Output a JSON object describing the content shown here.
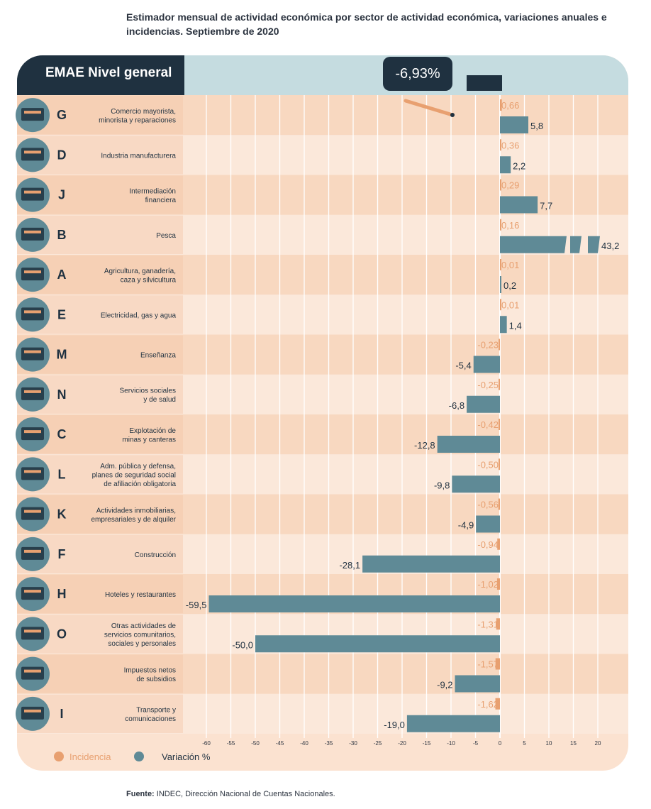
{
  "title": "Estimador mensual de actividad económica por sector de actividad económica, variaciones anuales e incidencias. Septiembre de 2020",
  "header": {
    "label": "EMAE Nivel general",
    "value": "-6,93%"
  },
  "footer": {
    "label": "Fuente:",
    "text": "INDEC, Dirección Nacional de Cuentas Nacionales."
  },
  "colors": {
    "bar": "#5f8a96",
    "incidence": "#e8a070",
    "dark": "#1f3140",
    "band_dark": "#f8d8c0",
    "band_light": "#fbe8da"
  },
  "chart_data": {
    "type": "bar",
    "orientation": "horizontal",
    "xlim": [
      -60,
      20
    ],
    "x_ticks": [
      -60,
      -55,
      -50,
      -45,
      -40,
      -35,
      -30,
      -25,
      -20,
      -15,
      -10,
      -5,
      0,
      5,
      10,
      15,
      20
    ],
    "rows": [
      {
        "code": "G",
        "label": [
          "Comercio mayorista,",
          "minorista y reparaciones"
        ],
        "icon": "store-icon",
        "incidencia": "0,66",
        "variacion": 5.8,
        "variacion_label": "5,8"
      },
      {
        "code": "D",
        "label": [
          "Industria manufacturera"
        ],
        "icon": "gears-icon",
        "incidencia": "0,36",
        "variacion": 2.2,
        "variacion_label": "2,2"
      },
      {
        "code": "J",
        "label": [
          "Intermediación",
          "financiera"
        ],
        "icon": "bank-icon",
        "incidencia": "0,29",
        "variacion": 7.7,
        "variacion_label": "7,7"
      },
      {
        "code": "B",
        "label": [
          "Pesca"
        ],
        "icon": "fish-icon",
        "incidencia": "0,16",
        "variacion": 43.2,
        "variacion_label": "43,2",
        "broken": true
      },
      {
        "code": "A",
        "label": [
          "Agricultura, ganadería,",
          "caza y silvicultura"
        ],
        "icon": "silo-icon",
        "incidencia": "0,01",
        "variacion": 0.2,
        "variacion_label": "0,2"
      },
      {
        "code": "E",
        "label": [
          "Electricidad, gas y agua"
        ],
        "icon": "tower-icon",
        "incidencia": "0,01",
        "variacion": 1.4,
        "variacion_label": "1,4"
      },
      {
        "code": "M",
        "label": [
          "Enseñanza"
        ],
        "icon": "desk-icon",
        "incidencia": "-0,23",
        "variacion": -5.4,
        "variacion_label": "-5,4"
      },
      {
        "code": "N",
        "label": [
          "Servicios sociales",
          "y de salud"
        ],
        "icon": "medkit-icon",
        "incidencia": "-0,25",
        "variacion": -6.8,
        "variacion_label": "-6,8"
      },
      {
        "code": "C",
        "label": [
          "Explotación de",
          "minas y canteras"
        ],
        "icon": "pumpjack-icon",
        "incidencia": "-0,42",
        "variacion": -12.8,
        "variacion_label": "-12,8"
      },
      {
        "code": "L",
        "label": [
          "Adm. pública y defensa,",
          "planes de seguridad social",
          "de afiliación obligatoria"
        ],
        "icon": "capitol-icon",
        "incidencia": "-0,50",
        "variacion": -9.8,
        "variacion_label": "-9,8"
      },
      {
        "code": "K",
        "label": [
          "Actividades inmobiliarias,",
          "empresariales y de alquiler"
        ],
        "icon": "megaphone-icon",
        "incidencia": "-0,56",
        "variacion": -4.9,
        "variacion_label": "-4,9"
      },
      {
        "code": "F",
        "label": [
          "Construcción"
        ],
        "icon": "truck-icon",
        "incidencia": "-0,94",
        "variacion": -28.1,
        "variacion_label": "-28,1"
      },
      {
        "code": "H",
        "label": [
          "Hoteles y restaurantes"
        ],
        "icon": "hotel-icon",
        "incidencia": "-1,02",
        "variacion": -59.5,
        "variacion_label": "-59,5"
      },
      {
        "code": "O",
        "label": [
          "Otras actividades de",
          "servicios comunitarios,",
          "sociales y personales"
        ],
        "icon": "theater-icon",
        "incidencia": "-1,31",
        "variacion": -50.0,
        "variacion_label": "-50,0"
      },
      {
        "code": "I2",
        "display_code": "",
        "label": [
          "Impuestos netos",
          "de subsidios"
        ],
        "icon": "coins-icon",
        "incidencia": "-1,57",
        "variacion": -9.2,
        "variacion_label": "-9,2"
      },
      {
        "code": "I",
        "label": [
          "Transporte y",
          "comunicaciones"
        ],
        "icon": "antenna-icon",
        "incidencia": "-1,62",
        "variacion": -19.0,
        "variacion_label": "-19,0"
      }
    ],
    "legend": [
      {
        "name": "Incidencia",
        "color": "#e8a070"
      },
      {
        "name": "Variación %",
        "color": "#5f8a96"
      }
    ]
  }
}
